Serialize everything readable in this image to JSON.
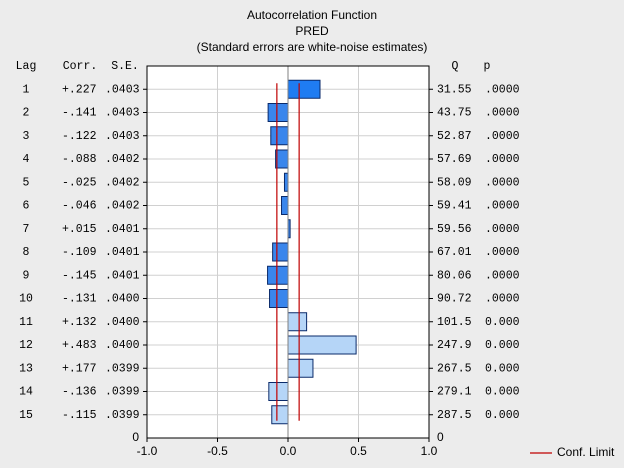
{
  "chart_data": {
    "type": "bar",
    "title": "Autocorrelation Function",
    "subtitle": "PRED",
    "note": "(Standard errors are white-noise estimates)",
    "headers": {
      "lag": "Lag",
      "corr": "Corr.",
      "se": "S.E.",
      "q": "Q",
      "p": "p"
    },
    "categories": [
      "1",
      "2",
      "3",
      "4",
      "5",
      "6",
      "7",
      "8",
      "9",
      "10",
      "11",
      "12",
      "13",
      "14",
      "15"
    ],
    "values": [
      0.227,
      -0.141,
      -0.122,
      -0.088,
      -0.025,
      -0.046,
      0.015,
      -0.109,
      -0.145,
      -0.131,
      0.132,
      0.483,
      0.177,
      -0.136,
      -0.115
    ],
    "value_labels": [
      "+.227",
      "-.141",
      "-.122",
      "-.088",
      "-.025",
      "-.046",
      "+.015",
      "-.109",
      "-.145",
      "-.131",
      "+.132",
      "+.483",
      "+.177",
      "-.136",
      "-.115"
    ],
    "se": [
      ".0403",
      ".0403",
      ".0403",
      ".0402",
      ".0402",
      ".0402",
      ".0401",
      ".0401",
      ".0401",
      ".0400",
      ".0400",
      ".0400",
      ".0399",
      ".0399",
      ".0399"
    ],
    "q": [
      "31.55",
      "43.75",
      "52.87",
      "57.69",
      "58.09",
      "59.41",
      "59.56",
      "67.01",
      "80.06",
      "90.72",
      "101.5",
      "247.9",
      "267.5",
      "279.1",
      "287.5"
    ],
    "p": [
      ".0000",
      ".0000",
      ".0000",
      ".0000",
      ".0000",
      ".0000",
      ".0000",
      ".0000",
      ".0000",
      ".0000",
      "0.000",
      "0.000",
      "0.000",
      "0.000",
      "0.000"
    ],
    "colors": [
      "#1f7cf2",
      "#3a86ec",
      "#3a86ec",
      "#3a86ec",
      "#3a86ec",
      "#3a86ec",
      "#3a86ec",
      "#3a86ec",
      "#3a86ec",
      "#3a86ec",
      "#b5d5f7",
      "#b5d5f7",
      "#b5d5f7",
      "#b5d5f7",
      "#b5d5f7"
    ],
    "conf_limit": {
      "name": "Conf. Limit",
      "color": "#c00000",
      "values": [
        -0.079,
        0.079
      ]
    },
    "xlim": [
      -1.0,
      1.0
    ],
    "xticks": [
      {
        "value": -1.0,
        "label": "-1.0"
      },
      {
        "value": -0.5,
        "label": "-0.5"
      },
      {
        "value": 0,
        "label": "0.0"
      },
      {
        "value": 0.5,
        "label": "0.5"
      },
      {
        "value": 1.0,
        "label": "1.0"
      }
    ],
    "ylim": [
      0,
      16
    ],
    "yticks": [
      0
    ],
    "grid": true
  }
}
